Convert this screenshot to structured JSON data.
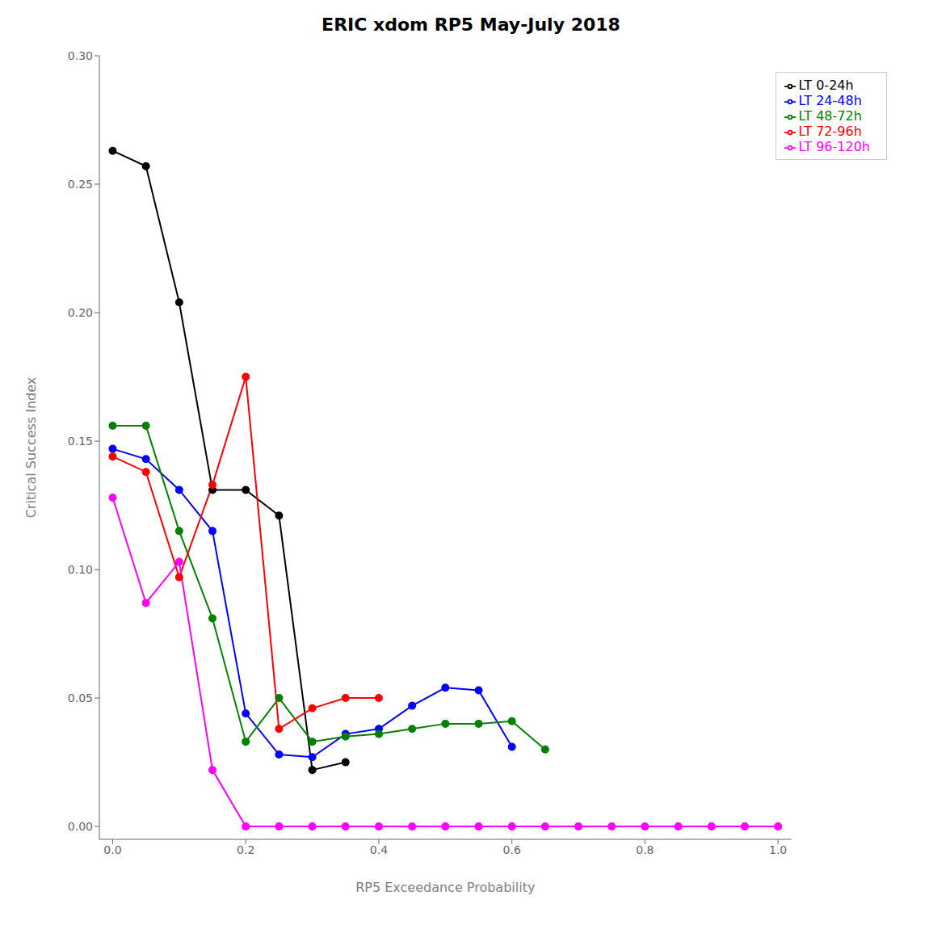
{
  "chart_data": {
    "type": "line",
    "title": "ERIC xdom RP5 May-July 2018",
    "xlabel": "RP5 Exceedance Probability",
    "ylabel": "Critical Success Index",
    "xlim": [
      -0.02,
      1.02
    ],
    "ylim": [
      -0.005,
      0.3
    ],
    "xticks": [
      {
        "value": 0.0,
        "label": "0.0"
      },
      0.2,
      0.4,
      0.6,
      0.8,
      {
        "value": 1.0,
        "label": "1.0"
      }
    ],
    "yticks": [
      {
        "value": 0.0,
        "label": "0.00"
      },
      0.05,
      {
        "value": 0.1,
        "label": "0.10"
      },
      0.15,
      {
        "value": 0.2,
        "label": "0.20"
      },
      0.25,
      {
        "value": 0.3,
        "label": "0.30"
      }
    ],
    "grid": false,
    "legend": "upper right",
    "marker": "circle",
    "series": [
      {
        "name": "LT 0-24h",
        "color": "black",
        "x": [
          0.0,
          0.05,
          0.1,
          0.15,
          0.2,
          0.25,
          0.3,
          0.35
        ],
        "values": [
          0.263,
          0.257,
          0.204,
          0.131,
          0.131,
          0.121,
          0.022,
          0.025
        ]
      },
      {
        "name": "LT 24-48h",
        "color": "blue",
        "x": [
          0.0,
          0.05,
          0.1,
          0.15,
          0.2,
          0.25,
          0.3,
          0.35,
          0.4,
          0.45,
          0.5,
          0.55,
          0.6
        ],
        "values": [
          0.147,
          0.143,
          0.131,
          0.115,
          0.044,
          0.028,
          0.027,
          0.036,
          0.038,
          0.047,
          0.054,
          0.053,
          0.031
        ]
      },
      {
        "name": "LT 48-72h",
        "color": "green",
        "x": [
          0.0,
          0.05,
          0.1,
          0.15,
          0.2,
          0.25,
          0.3,
          0.35,
          0.4,
          0.45,
          0.5,
          0.55,
          0.6,
          0.65
        ],
        "values": [
          0.156,
          0.156,
          0.115,
          0.081,
          0.033,
          0.05,
          0.033,
          0.035,
          0.036,
          0.038,
          0.04,
          0.04,
          0.041,
          0.03
        ]
      },
      {
        "name": "LT 72-96h",
        "color": "red",
        "x": [
          0.0,
          0.05,
          0.1,
          0.15,
          0.2,
          0.25,
          0.3,
          0.35,
          0.4
        ],
        "values": [
          0.144,
          0.138,
          0.097,
          0.133,
          0.175,
          0.038,
          0.046,
          0.05,
          0.05
        ]
      },
      {
        "name": "LT 96-120h",
        "color": "magenta",
        "x": [
          0.0,
          0.05,
          0.1,
          0.15,
          0.2,
          0.25,
          0.3,
          0.35,
          0.4,
          0.45,
          0.5,
          0.55,
          0.6,
          0.65,
          0.7,
          0.75,
          0.8,
          0.85,
          0.9,
          0.95,
          1.0
        ],
        "values": [
          0.128,
          0.087,
          0.103,
          0.022,
          0.0,
          0.0,
          0.0,
          0.0,
          0.0,
          0.0,
          0.0,
          0.0,
          0.0,
          0.0,
          0.0,
          0.0,
          0.0,
          0.0,
          0.0,
          0.0,
          0.0
        ]
      }
    ]
  }
}
